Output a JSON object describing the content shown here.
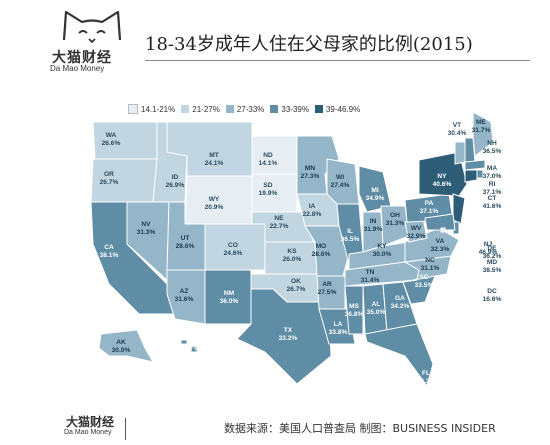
{
  "header": {
    "logo_cn": "大猫财经",
    "logo_en": "Da Mao Money",
    "title": "18-34岁成年人住在父母家的比例(2015)"
  },
  "legend": [
    {
      "label": "14.1-21%",
      "color": "#e6eef3"
    },
    {
      "label": "21-27%",
      "color": "#c2d6e1"
    },
    {
      "label": "27-33%",
      "color": "#94b6c8"
    },
    {
      "label": "33-39%",
      "color": "#5f8da6"
    },
    {
      "label": "39-46.9%",
      "color": "#2e5d77"
    }
  ],
  "states": [
    {
      "abbr": "WA",
      "value": "26.6%"
    },
    {
      "abbr": "OR",
      "value": "26.7%"
    },
    {
      "abbr": "CA",
      "value": "38.1%"
    },
    {
      "abbr": "NV",
      "value": "31.3%"
    },
    {
      "abbr": "ID",
      "value": "26.9%"
    },
    {
      "abbr": "MT",
      "value": "24.1%"
    },
    {
      "abbr": "WY",
      "value": "20.9%"
    },
    {
      "abbr": "UT",
      "value": "28.6%"
    },
    {
      "abbr": "AZ",
      "value": "31.6%"
    },
    {
      "abbr": "CO",
      "value": "24.6%"
    },
    {
      "abbr": "NM",
      "value": "36.0%"
    },
    {
      "abbr": "ND",
      "value": "14.1%"
    },
    {
      "abbr": "SD",
      "value": "19.9%"
    },
    {
      "abbr": "NE",
      "value": "22.7%"
    },
    {
      "abbr": "KS",
      "value": "26.0%"
    },
    {
      "abbr": "OK",
      "value": "26.7%"
    },
    {
      "abbr": "TX",
      "value": "33.2%"
    },
    {
      "abbr": "MN",
      "value": "27.3%"
    },
    {
      "abbr": "IA",
      "value": "22.8%"
    },
    {
      "abbr": "MO",
      "value": "28.6%"
    },
    {
      "abbr": "AR",
      "value": "27.5%"
    },
    {
      "abbr": "LA",
      "value": "33.8%"
    },
    {
      "abbr": "WI",
      "value": "27.4%"
    },
    {
      "abbr": "IL",
      "value": "36.5%"
    },
    {
      "abbr": "MI",
      "value": "34.9%"
    },
    {
      "abbr": "IN",
      "value": "31.9%"
    },
    {
      "abbr": "OH",
      "value": "31.3%"
    },
    {
      "abbr": "KY",
      "value": "30.0%"
    },
    {
      "abbr": "TN",
      "value": "31.4%"
    },
    {
      "abbr": "MS",
      "value": "36.8%"
    },
    {
      "abbr": "AL",
      "value": "35.0%"
    },
    {
      "abbr": "GA",
      "value": "34.2%"
    },
    {
      "abbr": "FL",
      "value": "38.3%"
    },
    {
      "abbr": "SC",
      "value": "33.5%"
    },
    {
      "abbr": "NC",
      "value": "31.1%"
    },
    {
      "abbr": "VA",
      "value": "32.3%"
    },
    {
      "abbr": "WV",
      "value": "32.9%"
    },
    {
      "abbr": "PA",
      "value": "37.1%"
    },
    {
      "abbr": "NY",
      "value": "40.6%"
    },
    {
      "abbr": "VT",
      "value": "30.4%"
    },
    {
      "abbr": "ME",
      "value": "31.7%"
    },
    {
      "abbr": "NH",
      "value": "36.5%"
    },
    {
      "abbr": "MA",
      "value": "37.0%"
    },
    {
      "abbr": "RI",
      "value": "37.1%"
    },
    {
      "abbr": "CT",
      "value": "41.6%"
    },
    {
      "abbr": "NJ",
      "value": "46.9%"
    },
    {
      "abbr": "DE",
      "value": "36.2%"
    },
    {
      "abbr": "MD",
      "value": "38.5%"
    },
    {
      "abbr": "DC",
      "value": "16.6%"
    },
    {
      "abbr": "AK",
      "value": "30.0%"
    },
    {
      "abbr": "HI",
      "value": "33.7%"
    }
  ],
  "footer": {
    "logo_cn": "大猫财经",
    "logo_en": "Da Mao Money",
    "source": "数据来源：美国人口普查局   制图：BUSINESS INSIDER"
  }
}
